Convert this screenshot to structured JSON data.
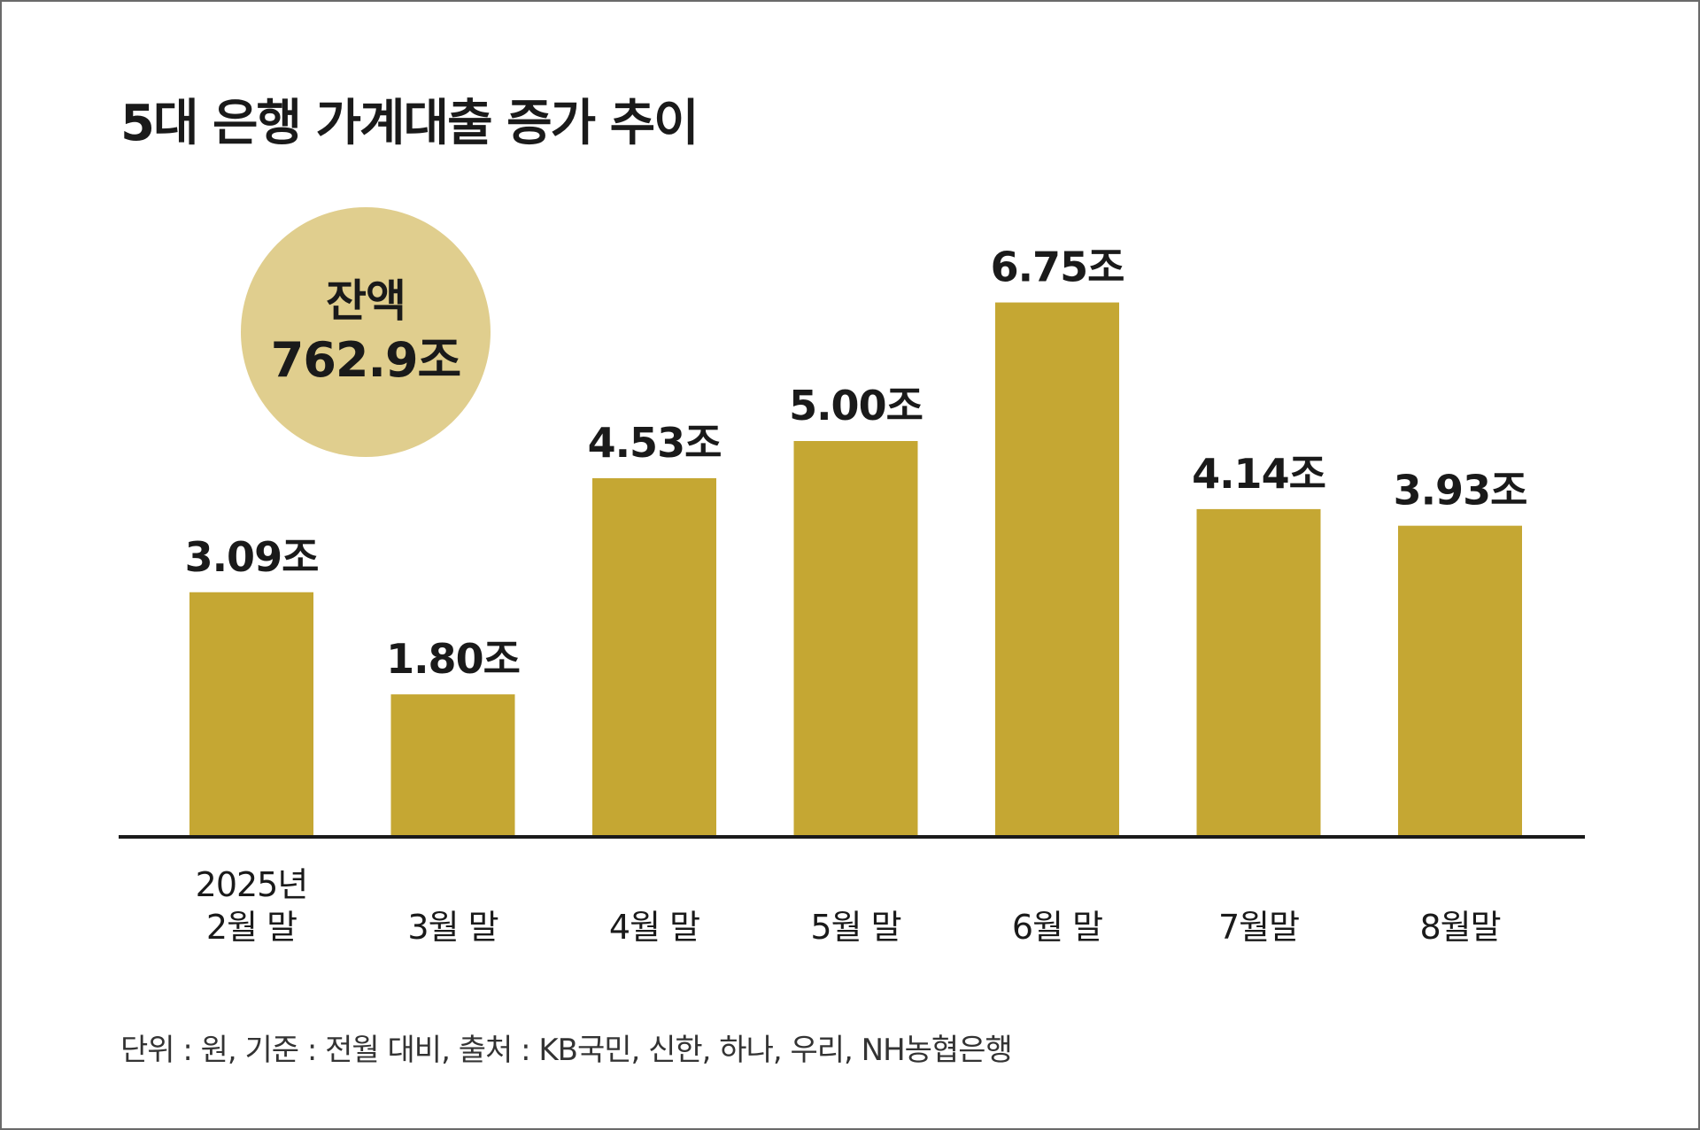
{
  "title": "5대 은행 가계대출 증가 추이",
  "badge": {
    "label": "잔액",
    "value": "762.9조"
  },
  "footnote": "단위 : 원, 기준 : 전월 대비, 출처 : KB국민, 신한, 하나, 우리, NH농협은행",
  "colors": {
    "bar": "#c5a733",
    "axis": "#1a1a1a",
    "label": "#1a1a1a",
    "badge": "#e0ce8e"
  },
  "chart_data": {
    "type": "bar",
    "categories": [
      [
        "2025년",
        "2월 말"
      ],
      [
        "3월 말"
      ],
      [
        "4월 말"
      ],
      [
        "5월 말"
      ],
      [
        "6월 말"
      ],
      [
        "7월말"
      ],
      [
        "8월말"
      ]
    ],
    "values": [
      3.09,
      1.8,
      4.53,
      5.0,
      6.75,
      4.14,
      3.93
    ],
    "value_labels": [
      "3.09조",
      "1.80조",
      "4.53조",
      "5.00조",
      "6.75조",
      "4.14조",
      "3.93조"
    ],
    "ylim": [
      0,
      7.2
    ],
    "grid": false,
    "title": "5대 은행 가계대출 증가 추이",
    "xlabel": "",
    "ylabel": ""
  }
}
